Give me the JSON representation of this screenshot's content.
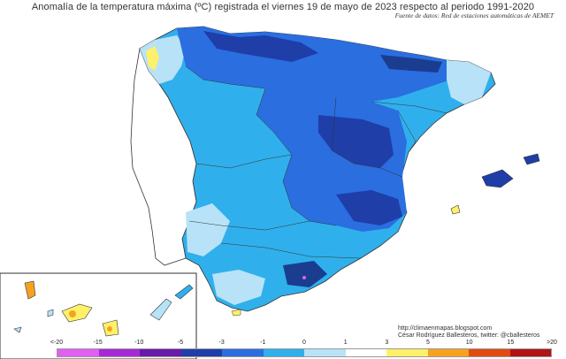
{
  "title": "Anomalía de la temperatura máxima (ºC) registrada el viernes 19 de mayo de 2023 respecto al periodo 1991-2020",
  "source": "Fuente de datos: Red de estaciones automáticas de AEMET",
  "credit": {
    "url": "http://climaenmapas.blogspot.com",
    "author": "César Rodríguez Ballesteros, twitter: @cballesteros"
  },
  "legend": {
    "labels": [
      "<-20",
      "-15",
      "-10",
      "-5",
      "-3",
      "-1",
      "0",
      "1",
      "3",
      "5",
      "10",
      "15",
      ">20"
    ],
    "colors": [
      "#e15ff2",
      "#a52ad6",
      "#6a1aa8",
      "#1f3ea8",
      "#2a6ee0",
      "#2fb0ec",
      "#b8e2f7",
      "#ffffff",
      "#fff06a",
      "#f6a21f",
      "#e24a12",
      "#b01414",
      "#7a3a0e"
    ]
  },
  "map_colors": {
    "strong_cold": "#1a3d8f",
    "cold": "#2f5fc8",
    "mid": "#3a7fe0",
    "mild": "#2fb0ec",
    "light": "#b8e2f7",
    "neutral": "#ffffff",
    "warm": "#fff06a",
    "hot": "#f6a21f",
    "land_outside": "#ffffff",
    "border": "#333333"
  }
}
